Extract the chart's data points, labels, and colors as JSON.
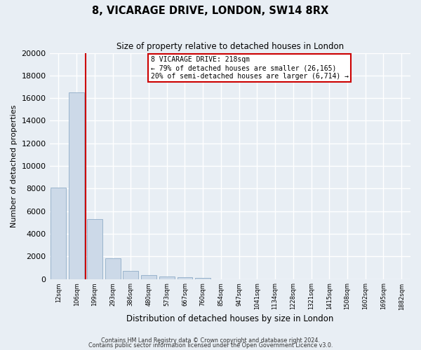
{
  "title": "8, VICARAGE DRIVE, LONDON, SW14 8RX",
  "subtitle": "Size of property relative to detached houses in London",
  "xlabel": "Distribution of detached houses by size in London",
  "ylabel": "Number of detached properties",
  "bar_values": [
    8100,
    16500,
    5300,
    1800,
    700,
    350,
    200,
    150,
    100,
    0,
    0,
    0,
    0,
    0,
    0,
    0,
    0,
    0,
    0,
    0
  ],
  "tick_labels": [
    "12sqm",
    "106sqm",
    "199sqm",
    "293sqm",
    "386sqm",
    "480sqm",
    "573sqm",
    "667sqm",
    "760sqm",
    "854sqm",
    "947sqm",
    "1041sqm",
    "1134sqm",
    "1228sqm",
    "1321sqm",
    "1415sqm",
    "1508sqm",
    "1602sqm",
    "1695sqm",
    "1882sqm"
  ],
  "bar_color": "#ccd9e8",
  "bar_edge_color": "#9ab4cc",
  "vline_x_index": 2,
  "vline_color": "#cc0000",
  "annotation_line1": "8 VICARAGE DRIVE: 218sqm",
  "annotation_line2": "← 79% of detached houses are smaller (26,165)",
  "annotation_line3": "20% of semi-detached houses are larger (6,714) →",
  "annotation_box_color": "#ffffff",
  "annotation_box_edge_color": "#cc0000",
  "ylim": [
    0,
    20000
  ],
  "yticks": [
    0,
    2000,
    4000,
    6000,
    8000,
    10000,
    12000,
    14000,
    16000,
    18000,
    20000
  ],
  "footer_line1": "Contains HM Land Registry data © Crown copyright and database right 2024.",
  "footer_line2": "Contains public sector information licensed under the Open Government Licence v3.0.",
  "bg_color": "#e8eef4",
  "plot_bg_color": "#e8eef4",
  "grid_color": "#ffffff"
}
